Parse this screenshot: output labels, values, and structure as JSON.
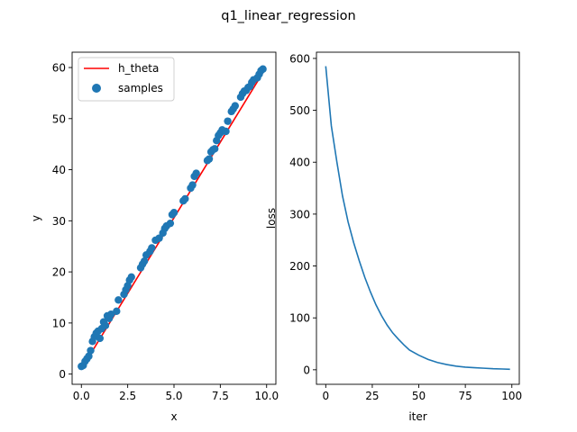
{
  "figure": {
    "suptitle": "q1_linear_regression"
  },
  "colors": {
    "line_red": "#ff0000",
    "scatter_blue": "#1f77b4",
    "loss_blue": "#1f77b4"
  },
  "chart_data": [
    {
      "type": "scatter",
      "name": "regression",
      "xlabel": "x",
      "ylabel": "y",
      "xlim": [
        -0.5,
        10.5
      ],
      "ylim": [
        -2.0,
        63.0
      ],
      "xticks": [
        0.0,
        2.5,
        5.0,
        7.5,
        10.0
      ],
      "xtick_labels": [
        "0.0",
        "2.5",
        "5.0",
        "7.5",
        "10.0"
      ],
      "yticks": [
        0,
        10,
        20,
        30,
        40,
        50,
        60
      ],
      "ytick_labels": [
        "0",
        "10",
        "20",
        "30",
        "40",
        "50",
        "60"
      ],
      "legend": {
        "placement": "top-left",
        "entries": [
          "h_theta",
          "samples"
        ]
      },
      "series": [
        {
          "name": "h_theta",
          "kind": "line",
          "x": [
            0.0,
            9.9
          ],
          "y": [
            1.0,
            59.6
          ]
        },
        {
          "name": "samples",
          "kind": "scatter",
          "x": [
            0.0,
            0.1,
            0.2,
            0.3,
            0.4,
            0.5,
            0.6,
            0.7,
            0.8,
            0.9,
            1.0,
            1.1,
            1.2,
            1.3,
            1.4,
            1.5,
            1.6,
            1.9,
            2.0,
            2.3,
            2.4,
            2.5,
            2.6,
            2.7,
            3.2,
            3.3,
            3.4,
            3.5,
            3.7,
            3.8,
            4.0,
            4.2,
            4.4,
            4.5,
            4.6,
            4.8,
            4.9,
            5.0,
            5.5,
            5.6,
            5.9,
            6.0,
            6.1,
            6.2,
            6.8,
            6.9,
            7.0,
            7.1,
            7.2,
            7.3,
            7.4,
            7.5,
            7.6,
            7.8,
            7.9,
            8.1,
            8.2,
            8.3,
            8.6,
            8.7,
            8.8,
            8.9,
            9.0,
            9.1,
            9.2,
            9.3,
            9.5,
            9.6,
            9.7,
            9.8
          ],
          "y": [
            1.5,
            1.7,
            2.5,
            3.0,
            3.5,
            4.6,
            6.4,
            7.3,
            8.0,
            8.4,
            7.0,
            8.9,
            10.2,
            9.5,
            11.4,
            10.9,
            11.7,
            12.3,
            14.5,
            15.6,
            16.5,
            17.3,
            18.4,
            19.0,
            20.8,
            21.5,
            22.1,
            23.3,
            24.0,
            24.7,
            26.2,
            26.6,
            27.6,
            28.5,
            29.0,
            29.5,
            31.2,
            31.6,
            33.9,
            34.3,
            36.4,
            37.0,
            38.7,
            39.3,
            41.8,
            42.1,
            43.5,
            43.9,
            44.1,
            45.7,
            46.7,
            47.2,
            47.8,
            47.5,
            49.5,
            51.4,
            51.9,
            52.5,
            54.2,
            54.9,
            55.4,
            55.5,
            56.1,
            56.3,
            57.1,
            57.6,
            58.0,
            58.7,
            59.4,
            59.7
          ]
        }
      ]
    },
    {
      "type": "line",
      "name": "loss",
      "xlabel": "iter",
      "ylabel": "loss",
      "xlim": [
        -5,
        104
      ],
      "ylim": [
        -28,
        612
      ],
      "xticks": [
        0,
        25,
        50,
        75,
        100
      ],
      "xtick_labels": [
        "0",
        "25",
        "50",
        "75",
        "100"
      ],
      "yticks": [
        0,
        100,
        200,
        300,
        400,
        500,
        600
      ],
      "ytick_labels": [
        "0",
        "100",
        "200",
        "300",
        "400",
        "500",
        "600"
      ],
      "series": [
        {
          "x": [
            0,
            3,
            6,
            9,
            12,
            15,
            18,
            21,
            24,
            27,
            30,
            33,
            36,
            39,
            42,
            45,
            50,
            55,
            60,
            65,
            70,
            75,
            80,
            85,
            90,
            95,
            99
          ],
          "y": [
            585,
            470,
            400,
            335,
            285,
            245,
            210,
            178,
            150,
            125,
            104,
            86,
            71,
            59,
            48,
            38,
            28,
            20,
            14,
            10,
            7,
            5,
            4,
            3,
            2,
            1.5,
            1
          ]
        }
      ]
    }
  ]
}
